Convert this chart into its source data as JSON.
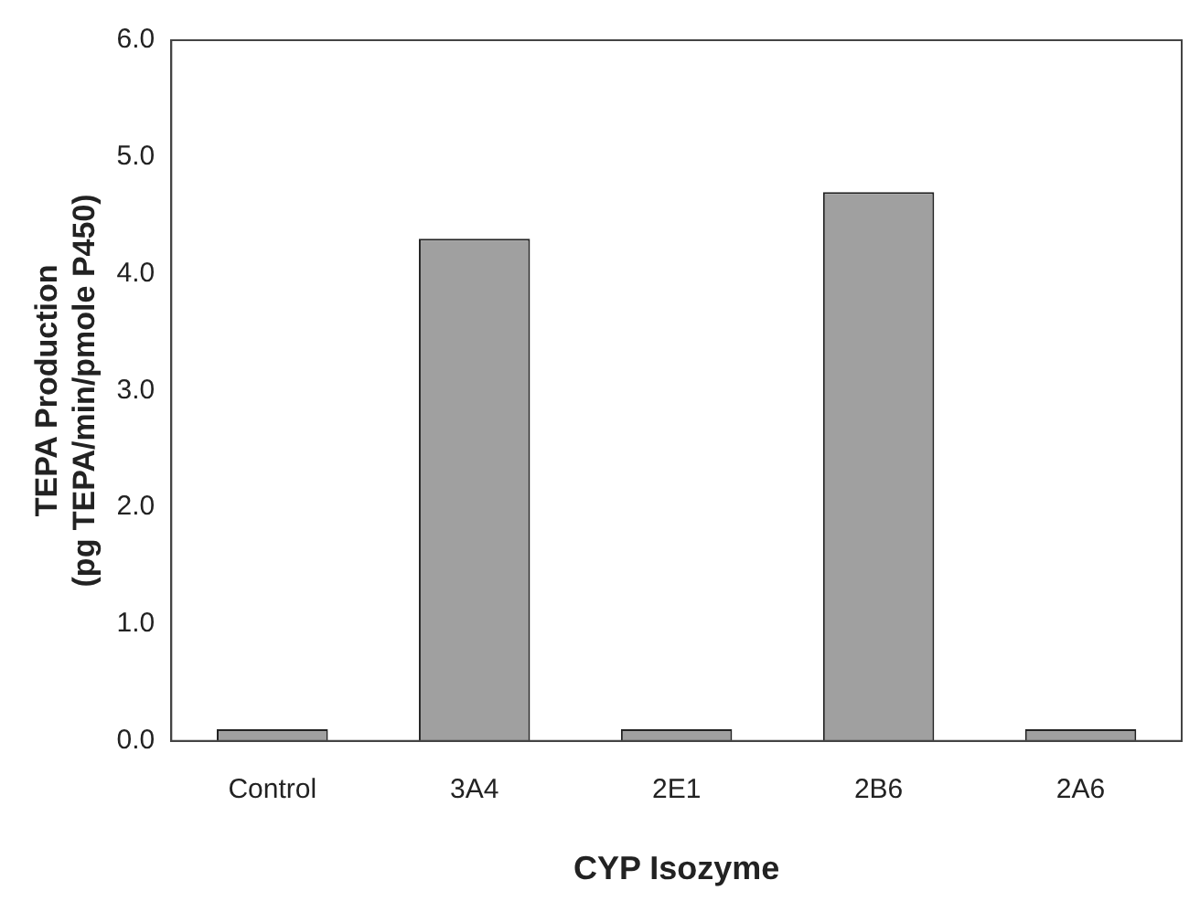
{
  "chart_data": {
    "type": "bar",
    "xlabel": "CYP Isozyme",
    "ylabel": "TEPA Production (pg TEPA/min/pmole P450)",
    "categories": [
      "Control",
      "3A4",
      "2E1",
      "2B6",
      "2A6"
    ],
    "values": [
      0.1,
      4.3,
      0.1,
      4.7,
      0.1
    ],
    "color": "#a0a0a0",
    "ylim": [
      0,
      6
    ],
    "yticks": [
      {
        "value": 0,
        "label": "0.0"
      },
      {
        "value": 1,
        "label": "1.0"
      },
      {
        "value": 2,
        "label": "2.0"
      },
      {
        "value": 3,
        "label": "3.0"
      },
      {
        "value": 4,
        "label": "4.0"
      },
      {
        "value": 5,
        "label": "5.0"
      },
      {
        "value": 6,
        "label": "6.0"
      }
    ],
    "grid": false,
    "legend": false
  }
}
